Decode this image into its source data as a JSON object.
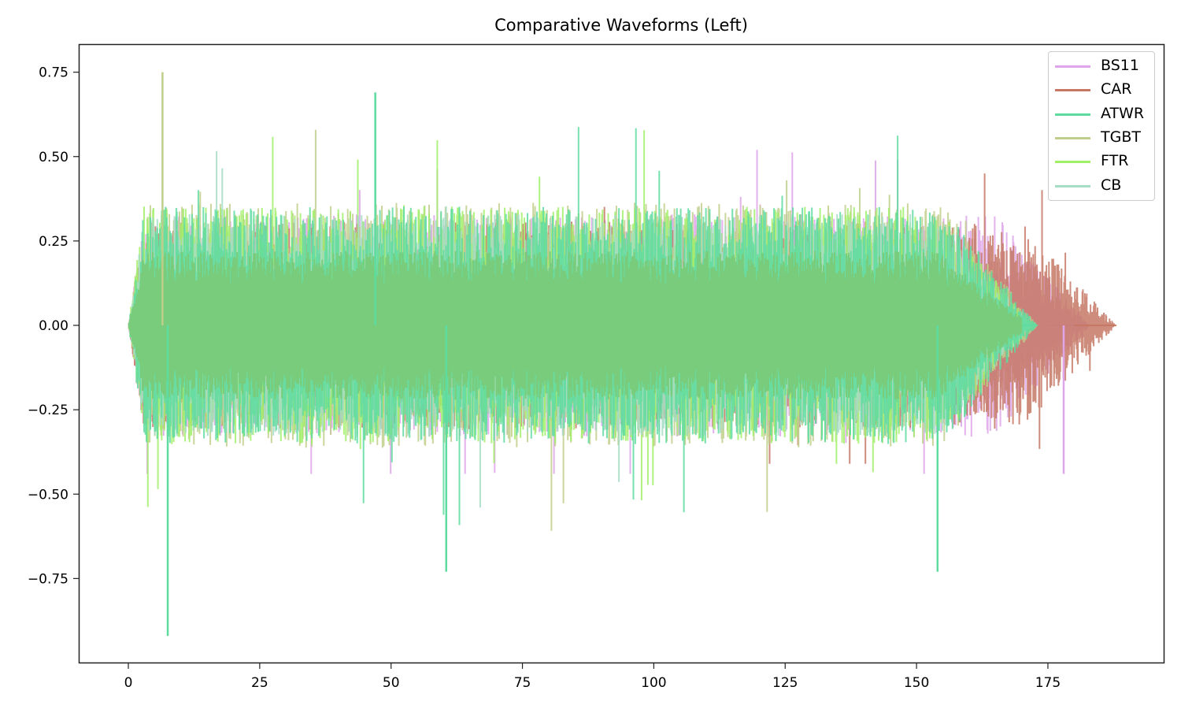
{
  "chart_data": {
    "type": "line",
    "title": "Comparative Waveforms (Left)",
    "xlabel": "",
    "ylabel": "",
    "xlim": [
      -9.4,
      197.1
    ],
    "ylim": [
      -0.99,
      0.83
    ],
    "xticks": [
      0,
      25,
      50,
      75,
      100,
      125,
      150,
      175
    ],
    "xtick_labels": [
      "0",
      "25",
      "50",
      "75",
      "100",
      "125",
      "150",
      "175"
    ],
    "yticks": [
      0.75,
      0.5,
      0.25,
      0.0,
      -0.25,
      -0.5,
      -0.75
    ],
    "ytick_labels": [
      "0.75",
      "0.50",
      "0.25",
      "0.00",
      "−0.25",
      "−0.50",
      "−0.75"
    ],
    "grid": false,
    "legend_position": "upper right",
    "series": [
      {
        "name": "BS11",
        "color": "#dea5ea",
        "x_end": 183,
        "typical_amp": 0.3,
        "peak_max": 0.53,
        "peak_min": -0.44
      },
      {
        "name": "CAR",
        "color": "#c67865",
        "x_end": 188,
        "typical_amp": 0.28,
        "peak_max": 0.45,
        "peak_min": -0.41
      },
      {
        "name": "ATWR",
        "color": "#5edca0",
        "x_end": 173,
        "typical_amp": 0.32,
        "peak_max": 0.69,
        "peak_min": -0.92
      },
      {
        "name": "TGBT",
        "color": "#bfcf8b",
        "x_end": 173,
        "typical_amp": 0.33,
        "peak_max": 0.75,
        "peak_min": -0.69
      },
      {
        "name": "FTR",
        "color": "#a1f068",
        "x_end": 172,
        "typical_amp": 0.32,
        "peak_max": 0.61,
        "peak_min": -0.65
      },
      {
        "name": "CB",
        "color": "#a5dcc4",
        "x_end": 172,
        "typical_amp": 0.3,
        "peak_max": 0.59,
        "peak_min": -0.67
      }
    ],
    "blended_fill_color": "#78cc7b",
    "notable_peaks": [
      {
        "series": "TGBT",
        "x": 6.5,
        "y": 0.75
      },
      {
        "series": "ATWR",
        "x": 7.5,
        "y": -0.92
      },
      {
        "series": "ATWR",
        "x": 47,
        "y": 0.69
      },
      {
        "series": "ATWR",
        "x": 60.5,
        "y": -0.73
      },
      {
        "series": "ATWR",
        "x": 154,
        "y": -0.73
      },
      {
        "series": "BS11",
        "x": 178,
        "y": -0.44
      }
    ]
  },
  "legend": {
    "items": [
      {
        "label": "BS11",
        "color": "#dea5ea"
      },
      {
        "label": "CAR",
        "color": "#c67865"
      },
      {
        "label": "ATWR",
        "color": "#5edca0"
      },
      {
        "label": "TGBT",
        "color": "#bfcf8b"
      },
      {
        "label": "FTR",
        "color": "#a1f068"
      },
      {
        "label": "CB",
        "color": "#a5dcc4"
      }
    ]
  }
}
